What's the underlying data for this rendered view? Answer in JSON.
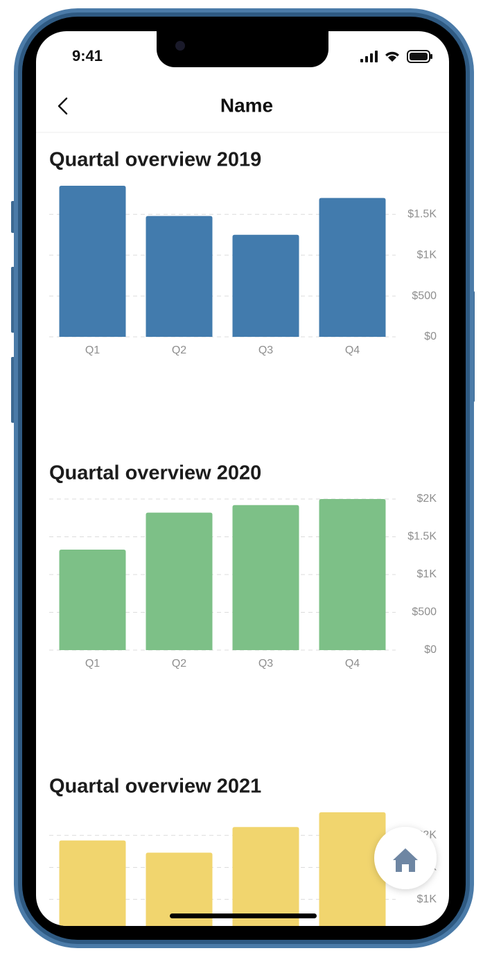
{
  "status_bar": {
    "time": "9:41"
  },
  "header": {
    "title": "Name"
  },
  "chart_data": [
    {
      "type": "bar",
      "title": "Quartal overview 2019",
      "categories": [
        "Q1",
        "Q2",
        "Q3",
        "Q4"
      ],
      "values": [
        1850,
        1480,
        1250,
        1700
      ],
      "color": "#427bad",
      "ylim": [
        0,
        1850
      ],
      "yticks": [
        {
          "value": 0,
          "label": "$0"
        },
        {
          "value": 500,
          "label": "$500"
        },
        {
          "value": 1000,
          "label": "$1K"
        },
        {
          "value": 1500,
          "label": "$1.5K"
        }
      ],
      "grid": true
    },
    {
      "type": "bar",
      "title": "Quartal overview 2020",
      "categories": [
        "Q1",
        "Q2",
        "Q3",
        "Q4"
      ],
      "values": [
        1330,
        1820,
        1920,
        2000
      ],
      "color": "#7dc087",
      "ylim": [
        0,
        2000
      ],
      "yticks": [
        {
          "value": 0,
          "label": "$0"
        },
        {
          "value": 500,
          "label": "$500"
        },
        {
          "value": 1000,
          "label": "$1K"
        },
        {
          "value": 1500,
          "label": "$1.5K"
        },
        {
          "value": 2000,
          "label": "$2K"
        }
      ],
      "grid": true
    },
    {
      "type": "bar",
      "title": "Quartal overview 2021",
      "categories": [
        null,
        null,
        null,
        null
      ],
      "values": [
        1920,
        1730,
        2130,
        2360
      ],
      "color": "#f1d56e",
      "ylim": [
        0,
        2360
      ],
      "yticks": [
        {
          "value": 1000,
          "label": "$1K"
        },
        {
          "value": 1500,
          "label": "$1.5K"
        },
        {
          "value": 2000,
          "label": "$2K"
        }
      ],
      "grid": true
    }
  ]
}
